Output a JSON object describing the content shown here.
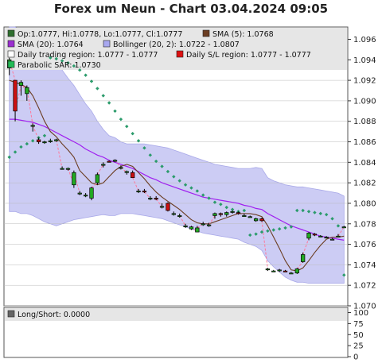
{
  "title": "Forex um Neun - Chart 03.04.2024 09:05",
  "legend": [
    {
      "text": "Op:1.0777, Hi:1.0778, Lo:1.0777, Cl:1.0777",
      "color": "#2f6f2f"
    },
    {
      "text": "SMA (5): 1.0768",
      "color": "#6b3d22"
    },
    {
      "text": "SMA (20): 1.0764",
      "color": "#9b2fd0"
    },
    {
      "text": "Bollinger (20, 2): 1.0722 - 1.0807",
      "color": "#a8a8f0"
    },
    {
      "text": "Daily trading region: 1.0777 - 1.0777",
      "color": "#ffffff"
    },
    {
      "text": "Daily S/L region: 1.0777 - 1.0777",
      "color": "#dd1111"
    },
    {
      "text": "Parabolic SAR: 1.0730",
      "color": "#22bb55"
    }
  ],
  "lower_legend": {
    "text": "Long/Short: 0.0000",
    "color": "#666666"
  },
  "colors": {
    "bull": "#22aa22",
    "bear": "#cc1111",
    "band": "#ccccf4",
    "sma5": "#6b3d22",
    "sma20": "#a020f0",
    "sar": "#2b9b6b",
    "dash": "#ff7799"
  },
  "chart_data": {
    "type": "candlestick",
    "title": "Forex um Neun - Chart 03.04.2024 09:05",
    "ylim": [
      1.07,
      1.0972
    ],
    "y_ticks": [
      "1.070",
      "1.072",
      "1.074",
      "1.076",
      "1.078",
      "1.080",
      "1.082",
      "1.084",
      "1.086",
      "1.088",
      "1.090",
      "1.092",
      "1.094",
      "1.096"
    ],
    "lower_ylim": [
      0,
      110
    ],
    "lower_ticks": [
      "0",
      "25",
      "50",
      "75",
      "100"
    ],
    "candles": [
      {
        "o": 1.0932,
        "h": 1.0942,
        "l": 1.0925,
        "c": 1.094
      },
      {
        "o": 1.092,
        "h": 1.092,
        "l": 1.088,
        "c": 1.089
      },
      {
        "o": 1.0915,
        "h": 1.092,
        "l": 1.0905,
        "c": 1.0918
      },
      {
        "o": 1.0907,
        "h": 1.0915,
        "l": 1.09,
        "c": 1.0913
      },
      {
        "o": 1.0876,
        "h": 1.0878,
        "l": 1.087,
        "c": 1.0876
      },
      {
        "o": 1.0862,
        "h": 1.0864,
        "l": 1.0858,
        "c": 1.086
      },
      {
        "o": 1.086,
        "h": 1.0861,
        "l": 1.0858,
        "c": 1.086
      },
      {
        "o": 1.0861,
        "h": 1.0863,
        "l": 1.0859,
        "c": 1.0861
      },
      {
        "o": 1.0861,
        "h": 1.0863,
        "l": 1.086,
        "c": 1.0862
      },
      {
        "o": 1.0834,
        "h": 1.0836,
        "l": 1.0833,
        "c": 1.0834
      },
      {
        "o": 1.0834,
        "h": 1.0835,
        "l": 1.0832,
        "c": 1.0834
      },
      {
        "o": 1.0818,
        "h": 1.0832,
        "l": 1.0815,
        "c": 1.083
      },
      {
        "o": 1.081,
        "h": 1.0812,
        "l": 1.0808,
        "c": 1.081
      },
      {
        "o": 1.0808,
        "h": 1.081,
        "l": 1.0806,
        "c": 1.0808
      },
      {
        "o": 1.0805,
        "h": 1.0816,
        "l": 1.0803,
        "c": 1.0815
      },
      {
        "o": 1.082,
        "h": 1.083,
        "l": 1.0818,
        "c": 1.0828
      },
      {
        "o": 1.0838,
        "h": 1.084,
        "l": 1.0835,
        "c": 1.0838
      },
      {
        "o": 1.0841,
        "h": 1.0842,
        "l": 1.084,
        "c": 1.084
      },
      {
        "o": 1.0841,
        "h": 1.0843,
        "l": 1.084,
        "c": 1.0842
      },
      {
        "o": 1.0835,
        "h": 1.0837,
        "l": 1.0833,
        "c": 1.0835
      },
      {
        "o": 1.083,
        "h": 1.0832,
        "l": 1.0828,
        "c": 1.0831
      },
      {
        "o": 1.083,
        "h": 1.0832,
        "l": 1.0825,
        "c": 1.0825
      },
      {
        "o": 1.0812,
        "h": 1.0814,
        "l": 1.081,
        "c": 1.0812
      },
      {
        "o": 1.0812,
        "h": 1.0814,
        "l": 1.081,
        "c": 1.0811
      },
      {
        "o": 1.0805,
        "h": 1.0807,
        "l": 1.0803,
        "c": 1.0805
      },
      {
        "o": 1.0805,
        "h": 1.0807,
        "l": 1.0803,
        "c": 1.0804
      },
      {
        "o": 1.0797,
        "h": 1.08,
        "l": 1.0795,
        "c": 1.0797
      },
      {
        "o": 1.08,
        "h": 1.0801,
        "l": 1.0792,
        "c": 1.0793
      },
      {
        "o": 1.079,
        "h": 1.0792,
        "l": 1.0788,
        "c": 1.079
      },
      {
        "o": 1.0788,
        "h": 1.079,
        "l": 1.0786,
        "c": 1.0788
      },
      {
        "o": 1.0778,
        "h": 1.078,
        "l": 1.0776,
        "c": 1.0778
      },
      {
        "o": 1.0775,
        "h": 1.0778,
        "l": 1.0774,
        "c": 1.0777
      },
      {
        "o": 1.0772,
        "h": 1.0778,
        "l": 1.0772,
        "c": 1.0776
      },
      {
        "o": 1.078,
        "h": 1.0782,
        "l": 1.0778,
        "c": 1.078
      },
      {
        "o": 1.0779,
        "h": 1.0781,
        "l": 1.0777,
        "c": 1.0779
      },
      {
        "o": 1.0788,
        "h": 1.0791,
        "l": 1.0785,
        "c": 1.079
      },
      {
        "o": 1.079,
        "h": 1.0791,
        "l": 1.0787,
        "c": 1.0789
      },
      {
        "o": 1.0789,
        "h": 1.0792,
        "l": 1.0787,
        "c": 1.0791
      },
      {
        "o": 1.0792,
        "h": 1.0793,
        "l": 1.079,
        "c": 1.0792
      },
      {
        "o": 1.0791,
        "h": 1.0792,
        "l": 1.0789,
        "c": 1.079
      },
      {
        "o": 1.0788,
        "h": 1.079,
        "l": 1.0787,
        "c": 1.0788
      },
      {
        "o": 1.0787,
        "h": 1.0788,
        "l": 1.0786,
        "c": 1.0787
      },
      {
        "o": 1.0783,
        "h": 1.0786,
        "l": 1.0782,
        "c": 1.0785
      },
      {
        "o": 1.0785,
        "h": 1.0786,
        "l": 1.0782,
        "c": 1.0783
      },
      {
        "o": 1.0736,
        "h": 1.0737,
        "l": 1.0734,
        "c": 1.0736
      },
      {
        "o": 1.0734,
        "h": 1.0735,
        "l": 1.0733,
        "c": 1.0734
      },
      {
        "o": 1.0735,
        "h": 1.0736,
        "l": 1.0733,
        "c": 1.0735
      },
      {
        "o": 1.0734,
        "h": 1.0735,
        "l": 1.0733,
        "c": 1.0733
      },
      {
        "o": 1.0732,
        "h": 1.0733,
        "l": 1.0731,
        "c": 1.0732
      },
      {
        "o": 1.0732,
        "h": 1.0737,
        "l": 1.0731,
        "c": 1.0736
      },
      {
        "o": 1.0743,
        "h": 1.0752,
        "l": 1.0742,
        "c": 1.075
      },
      {
        "o": 1.0766,
        "h": 1.0772,
        "l": 1.0764,
        "c": 1.0771
      },
      {
        "o": 1.077,
        "h": 1.0771,
        "l": 1.0768,
        "c": 1.0769
      },
      {
        "o": 1.0768,
        "h": 1.0769,
        "l": 1.0767,
        "c": 1.0768
      },
      {
        "o": 1.0767,
        "h": 1.0768,
        "l": 1.0766,
        "c": 1.0767
      },
      {
        "o": 1.0765,
        "h": 1.0766,
        "l": 1.0764,
        "c": 1.0765
      },
      {
        "o": 1.0768,
        "h": 1.077,
        "l": 1.0767,
        "c": 1.0768
      },
      {
        "o": 1.0777,
        "h": 1.0778,
        "l": 1.0777,
        "c": 1.0777
      }
    ],
    "sma5": [
      1.092,
      1.0918,
      1.0916,
      1.0913,
      1.0905,
      1.0893,
      1.088,
      1.087,
      1.0865,
      1.0858,
      1.0852,
      1.0845,
      1.0832,
      1.0826,
      1.082,
      1.0818,
      1.082,
      1.0826,
      1.0832,
      1.0836,
      1.0838,
      1.0836,
      1.083,
      1.0824,
      1.0817,
      1.0811,
      1.0806,
      1.0802,
      1.0798,
      1.0794,
      1.0789,
      1.0784,
      1.0781,
      1.078,
      1.078,
      1.0782,
      1.0784,
      1.0786,
      1.0788,
      1.079,
      1.079,
      1.079,
      1.0789,
      1.0787,
      1.0778,
      1.0767,
      1.0756,
      1.0744,
      1.0735,
      1.0734,
      1.0737,
      1.0744,
      1.0752,
      1.0759,
      1.0765,
      1.0767,
      1.0767,
      1.0768
    ],
    "sma20": [
      1.0882,
      1.0882,
      1.0881,
      1.088,
      1.0879,
      1.0877,
      1.0875,
      1.0872,
      1.0869,
      1.0866,
      1.0863,
      1.086,
      1.0857,
      1.0853,
      1.085,
      1.0847,
      1.0845,
      1.0842,
      1.084,
      1.0838,
      1.0836,
      1.0834,
      1.0831,
      1.0828,
      1.0825,
      1.0823,
      1.082,
      1.0818,
      1.0816,
      1.0814,
      1.0812,
      1.081,
      1.0808,
      1.0806,
      1.0805,
      1.0804,
      1.0803,
      1.0802,
      1.0801,
      1.08,
      1.0798,
      1.0797,
      1.0795,
      1.0794,
      1.079,
      1.0787,
      1.0784,
      1.0781,
      1.0778,
      1.0776,
      1.0774,
      1.0772,
      1.077,
      1.0768,
      1.0767,
      1.0766,
      1.0765,
      1.0764
    ],
    "boll_upper": [
      1.0972,
      1.0972,
      1.0968,
      1.0958,
      1.0952,
      1.0948,
      1.0945,
      1.0942,
      1.0938,
      1.093,
      1.0922,
      1.0915,
      1.0906,
      1.0897,
      1.089,
      1.088,
      1.0872,
      1.0866,
      1.0864,
      1.086,
      1.0858,
      1.0858,
      1.0858,
      1.0858,
      1.0857,
      1.0856,
      1.0855,
      1.0854,
      1.0852,
      1.085,
      1.0848,
      1.0846,
      1.0844,
      1.0842,
      1.084,
      1.0838,
      1.0837,
      1.0836,
      1.0835,
      1.0834,
      1.0834,
      1.0834,
      1.0835,
      1.0834,
      1.0825,
      1.0822,
      1.082,
      1.0818,
      1.0817,
      1.0816,
      1.0816,
      1.0815,
      1.0814,
      1.0813,
      1.0812,
      1.0811,
      1.081,
      1.0807
    ],
    "boll_lower": [
      1.0792,
      1.0792,
      1.079,
      1.079,
      1.0788,
      1.0785,
      1.0782,
      1.078,
      1.0778,
      1.078,
      1.0782,
      1.0784,
      1.0785,
      1.0786,
      1.0787,
      1.0788,
      1.0789,
      1.0788,
      1.0788,
      1.079,
      1.079,
      1.079,
      1.0789,
      1.0788,
      1.0787,
      1.0786,
      1.0785,
      1.0783,
      1.0781,
      1.0779,
      1.0777,
      1.0775,
      1.0773,
      1.0771,
      1.077,
      1.0769,
      1.0768,
      1.0767,
      1.0766,
      1.0765,
      1.0762,
      1.076,
      1.0758,
      1.0754,
      1.0744,
      1.0738,
      1.0733,
      1.0728,
      1.0725,
      1.0723,
      1.0723,
      1.0722,
      1.0722,
      1.0722,
      1.0722,
      1.0722,
      1.0722,
      1.0722
    ],
    "sar": [
      1.0845,
      1.085,
      1.0855,
      1.0858,
      1.0861,
      1.0864,
      1.0866,
      1.0942,
      1.0941,
      1.0939,
      1.0937,
      1.0934,
      1.093,
      1.0925,
      1.0919,
      1.0912,
      1.0905,
      1.0898,
      1.089,
      1.0882,
      1.0875,
      1.0868,
      1.0861,
      1.0854,
      1.0847,
      1.0841,
      1.0836,
      1.0831,
      1.0826,
      1.0822,
      1.0818,
      1.0815,
      1.0812,
      1.0808,
      1.0805,
      1.0801,
      1.0799,
      1.0796,
      1.0794,
      1.0792,
      1.0793,
      1.0769,
      1.077,
      1.0772,
      1.0773,
      1.0774,
      1.0775,
      1.0776,
      1.0777,
      1.0793,
      1.0793,
      1.0792,
      1.0791,
      1.079,
      1.0789,
      1.0785,
      1.0778,
      1.073
    ]
  }
}
